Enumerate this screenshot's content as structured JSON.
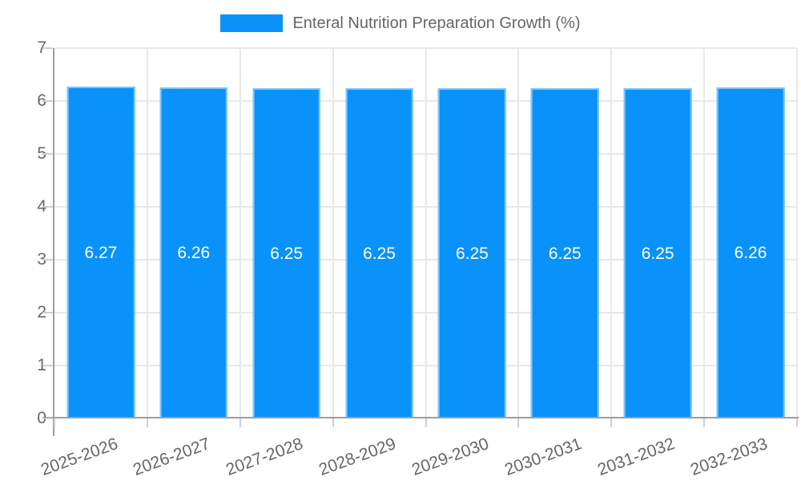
{
  "legend": {
    "label": "Enteral Nutrition Preparation Growth (%)"
  },
  "chart_data": {
    "type": "bar",
    "title": "Enteral Nutrition Preparation Growth (%)",
    "categories": [
      "2025-2026",
      "2026-2027",
      "2027-2028",
      "2028-2029",
      "2029-2030",
      "2030-2031",
      "2031-2032",
      "2032-2033"
    ],
    "values": [
      6.27,
      6.26,
      6.25,
      6.25,
      6.25,
      6.25,
      6.25,
      6.26
    ],
    "value_decimals": 2,
    "xlabel": "",
    "ylabel": "",
    "ylim": [
      0,
      7
    ],
    "yticks": [
      0,
      1,
      2,
      3,
      4,
      5,
      6,
      7
    ],
    "grid": true,
    "legend_position": "top",
    "bar_color": "#0892fa",
    "bar_border_color": "#7fc4fa",
    "value_label_color": "#ffffff"
  }
}
